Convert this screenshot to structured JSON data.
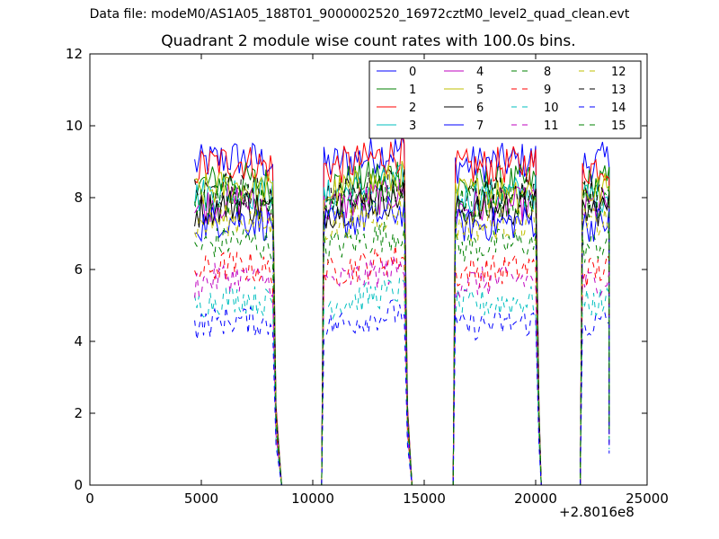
{
  "suptitle": "Data file: modeM0/AS1A05_188T01_9000002520_16972cztM0_level2_quad_clean.evt",
  "chart_data": {
    "type": "line",
    "title": "Quadrant 2 module wise count rates with 100.0s bins.",
    "xlabel": "",
    "ylabel": "",
    "xlim": [
      0,
      25000
    ],
    "ylim": [
      0,
      12
    ],
    "x_offset_label": "+2.8016e8",
    "xticks": [
      "0",
      "5000",
      "10000",
      "15000",
      "20000",
      "25000"
    ],
    "yticks": [
      "0",
      "2",
      "4",
      "6",
      "8",
      "10",
      "12"
    ],
    "legend_position": "top-right",
    "segments": [
      {
        "start": 4700,
        "end": 8200,
        "drop_to_zero": 8600
      },
      {
        "start": 10500,
        "end": 14100,
        "drop_to_zero": 14450
      },
      {
        "start": 16400,
        "end": 20000,
        "drop_to_zero": 20250
      },
      {
        "start": 22100,
        "end": 23300,
        "drop_to_zero": null
      }
    ],
    "zero_gaps": [
      [
        8600,
        10400
      ],
      [
        14450,
        16300
      ],
      [
        20250,
        22000
      ]
    ],
    "series": [
      {
        "name": "0",
        "color": "#0000ff",
        "style": "solid",
        "level": 8.9
      },
      {
        "name": "1",
        "color": "#008000",
        "style": "solid",
        "level": 8.3
      },
      {
        "name": "2",
        "color": "#ff0000",
        "style": "solid",
        "level": 8.8
      },
      {
        "name": "3",
        "color": "#00bfbf",
        "style": "solid",
        "level": 8.0
      },
      {
        "name": "4",
        "color": "#bf00bf",
        "style": "solid",
        "level": 7.7
      },
      {
        "name": "5",
        "color": "#bfbf00",
        "style": "solid",
        "level": 8.1
      },
      {
        "name": "6",
        "color": "#000000",
        "style": "solid",
        "level": 7.6
      },
      {
        "name": "7",
        "color": "#0000ff",
        "style": "solid",
        "level": 7.2
      },
      {
        "name": "8",
        "color": "#008000",
        "style": "dashed",
        "level": 6.6
      },
      {
        "name": "9",
        "color": "#ff0000",
        "style": "dashed",
        "level": 5.9
      },
      {
        "name": "10",
        "color": "#00bfbf",
        "style": "dashed",
        "level": 5.0
      },
      {
        "name": "11",
        "color": "#bf00bf",
        "style": "dashed",
        "level": 5.6
      },
      {
        "name": "12",
        "color": "#bfbf00",
        "style": "dashed",
        "level": 7.2
      },
      {
        "name": "13",
        "color": "#000000",
        "style": "dashed",
        "level": 8.0
      },
      {
        "name": "14",
        "color": "#0000ff",
        "style": "dashed",
        "level": 4.4
      },
      {
        "name": "15",
        "color": "#008000",
        "style": "dashed",
        "level": 7.8
      }
    ]
  }
}
